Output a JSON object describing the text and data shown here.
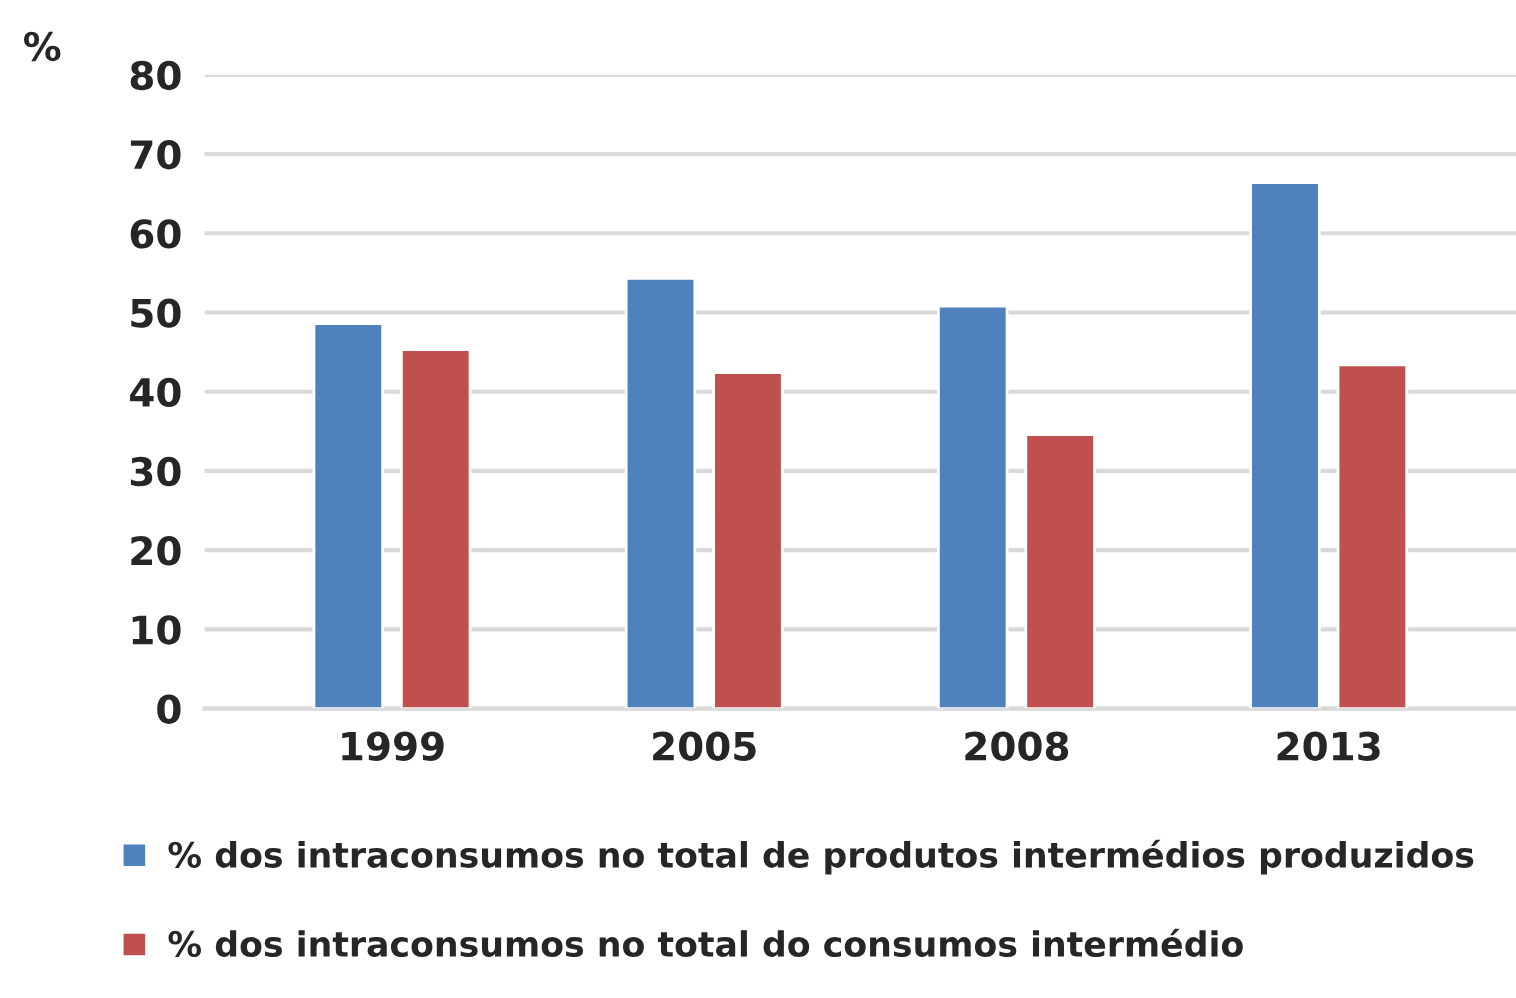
{
  "chart_data": {
    "type": "bar",
    "ylabel": "%",
    "categories": [
      "1999",
      "2005",
      "2008",
      "2013"
    ],
    "series": [
      {
        "name": "% dos intraconsumos no total de produtos intermédios produzidos",
        "color": "#4f81bd",
        "values": [
          48.6,
          54.3,
          50.8,
          66.4
        ]
      },
      {
        "name": "% dos intraconsumos no total do consumos intermédio",
        "color": "#c0504d",
        "values": [
          45.3,
          42.4,
          34.6,
          43.4
        ]
      }
    ],
    "ylim": [
      0,
      80
    ],
    "yticks": [
      0,
      10,
      20,
      30,
      40,
      50,
      60,
      70,
      80
    ],
    "grid": "y",
    "legend": "bottom"
  }
}
